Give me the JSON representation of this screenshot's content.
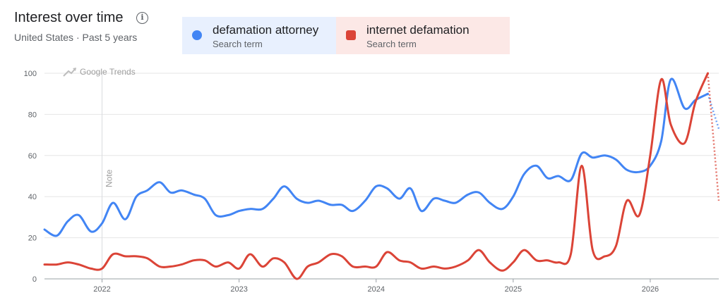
{
  "header": {
    "title": "Interest over time",
    "info_icon": "info-icon",
    "subtitle": "United States · Past 5 years"
  },
  "terms": [
    {
      "name": "defamation attorney",
      "kind": "Search term",
      "color": "#4285f4"
    },
    {
      "name": "internet defamation",
      "kind": "Search term",
      "color": "#db4437"
    }
  ],
  "watermark": "Google Trends",
  "note_label": "Note",
  "chart_data": {
    "type": "line",
    "title": "Interest over time",
    "xlabel": "",
    "ylabel": "",
    "ylim": [
      0,
      100
    ],
    "yticks": [
      0,
      20,
      40,
      60,
      80,
      100
    ],
    "xlim": [
      2021.58,
      2026.5
    ],
    "xticks": [
      {
        "x": 2022,
        "label": "2022"
      },
      {
        "x": 2023,
        "label": "2023"
      },
      {
        "x": 2024,
        "label": "2024"
      },
      {
        "x": 2025,
        "label": "2025"
      },
      {
        "x": 2026,
        "label": "2026"
      }
    ],
    "grid": true,
    "legend": "top",
    "series": [
      {
        "name": "defamation attorney",
        "color": "#4285f4",
        "x": [
          2021.58,
          2021.67,
          2021.75,
          2021.83,
          2021.92,
          2022.0,
          2022.08,
          2022.17,
          2022.25,
          2022.33,
          2022.42,
          2022.5,
          2022.58,
          2022.67,
          2022.75,
          2022.83,
          2022.92,
          2023.0,
          2023.08,
          2023.17,
          2023.25,
          2023.33,
          2023.42,
          2023.5,
          2023.58,
          2023.67,
          2023.75,
          2023.83,
          2023.92,
          2024.0,
          2024.08,
          2024.17,
          2024.25,
          2024.33,
          2024.42,
          2024.5,
          2024.58,
          2024.67,
          2024.75,
          2024.83,
          2024.92,
          2025.0,
          2025.08,
          2025.17,
          2025.25,
          2025.33,
          2025.42,
          2025.5,
          2025.58,
          2025.67,
          2025.75,
          2025.83,
          2025.92,
          2026.0,
          2026.08,
          2026.15,
          2026.25,
          2026.33,
          2026.42
        ],
        "y": [
          24,
          21,
          28,
          31,
          23,
          27,
          37,
          29,
          40,
          43,
          47,
          42,
          43,
          41,
          39,
          31,
          31,
          33,
          34,
          34,
          39,
          45,
          39,
          37,
          38,
          36,
          36,
          33,
          38,
          45,
          44,
          39,
          44,
          33,
          39,
          38,
          37,
          41,
          42,
          37,
          34,
          40,
          51,
          55,
          49,
          50,
          48,
          61,
          59,
          60,
          58,
          53,
          52,
          55,
          67,
          97,
          83,
          87,
          90
        ]
      },
      {
        "name": "internet defamation",
        "color": "#db4437",
        "x": [
          2021.58,
          2021.67,
          2021.75,
          2021.83,
          2021.92,
          2022.0,
          2022.08,
          2022.17,
          2022.25,
          2022.33,
          2022.42,
          2022.5,
          2022.58,
          2022.67,
          2022.75,
          2022.83,
          2022.92,
          2023.0,
          2023.08,
          2023.17,
          2023.25,
          2023.33,
          2023.42,
          2023.5,
          2023.58,
          2023.67,
          2023.75,
          2023.83,
          2023.92,
          2024.0,
          2024.08,
          2024.17,
          2024.25,
          2024.33,
          2024.42,
          2024.5,
          2024.58,
          2024.67,
          2024.75,
          2024.83,
          2024.92,
          2025.0,
          2025.08,
          2025.17,
          2025.25,
          2025.33,
          2025.42,
          2025.5,
          2025.58,
          2025.67,
          2025.75,
          2025.83,
          2025.92,
          2026.0,
          2026.08,
          2026.15,
          2026.25,
          2026.33,
          2026.42
        ],
        "y": [
          7,
          7,
          8,
          7,
          5,
          5,
          12,
          11,
          11,
          10,
          6,
          6,
          7,
          9,
          9,
          6,
          8,
          5,
          12,
          6,
          10,
          8,
          0,
          6,
          8,
          12,
          11,
          6,
          6,
          6,
          13,
          9,
          8,
          5,
          6,
          5,
          6,
          9,
          14,
          8,
          4,
          8,
          14,
          9,
          9,
          8,
          12,
          55,
          14,
          11,
          16,
          38,
          31,
          60,
          97,
          75,
          66,
          86,
          100
        ]
      }
    ],
    "partial": [
      {
        "series": "defamation attorney",
        "x": [
          2026.42,
          2026.5
        ],
        "y": [
          90,
          73
        ]
      },
      {
        "series": "internet defamation",
        "x": [
          2026.42,
          2026.5
        ],
        "y": [
          100,
          38
        ]
      }
    ]
  }
}
